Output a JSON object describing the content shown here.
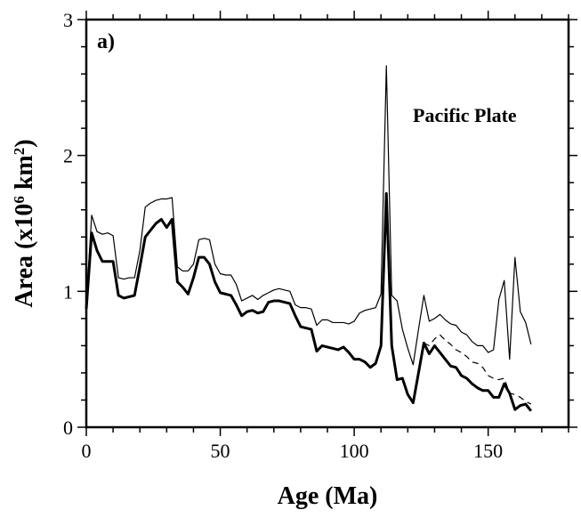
{
  "chart_data": {
    "type": "line",
    "panel_label": "a)",
    "annotation": "Pacific Plate",
    "xlabel": "Age (Ma)",
    "ylabel_main": "Area (x10",
    "ylabel_exp1": "6",
    "ylabel_mid": " km",
    "ylabel_exp2": "2",
    "ylabel_end": ")",
    "xlim": [
      0,
      180
    ],
    "ylim": [
      0,
      3
    ],
    "xticks": [
      0,
      50,
      100,
      150
    ],
    "yticks": [
      0,
      1,
      2,
      3
    ],
    "grid": false,
    "series": [
      {
        "style": "thin-solid",
        "x": [
          0,
          2,
          4,
          6,
          8,
          10,
          12,
          14,
          16,
          18,
          20,
          22,
          24,
          26,
          28,
          30,
          32,
          34,
          36,
          38,
          40,
          42,
          44,
          46,
          48,
          50,
          52,
          54,
          56,
          58,
          60,
          62,
          64,
          66,
          68,
          70,
          72,
          74,
          76,
          78,
          80,
          82,
          84,
          86,
          88,
          90,
          92,
          94,
          96,
          98,
          100,
          102,
          104,
          106,
          108,
          110,
          112,
          114,
          116,
          118,
          120,
          122,
          124,
          126,
          128,
          130,
          132,
          134,
          136,
          138,
          140,
          142,
          144,
          146,
          148,
          150,
          152,
          154,
          156,
          158,
          160,
          162,
          164,
          166
        ],
        "y": [
          0.9,
          1.56,
          1.44,
          1.42,
          1.43,
          1.41,
          1.1,
          1.09,
          1.1,
          1.1,
          1.3,
          1.62,
          1.65,
          1.67,
          1.68,
          1.68,
          1.69,
          1.18,
          1.15,
          1.15,
          1.2,
          1.38,
          1.39,
          1.38,
          1.2,
          1.13,
          1.12,
          1.12,
          1.05,
          0.93,
          0.95,
          0.97,
          0.94,
          0.97,
          0.99,
          1.01,
          1.02,
          1.01,
          1.0,
          0.9,
          0.88,
          0.88,
          0.87,
          0.75,
          0.79,
          0.79,
          0.77,
          0.77,
          0.77,
          0.76,
          0.78,
          0.84,
          0.86,
          0.87,
          0.88,
          0.98,
          2.66,
          0.97,
          0.93,
          0.72,
          0.58,
          0.46,
          0.72,
          0.97,
          0.78,
          0.8,
          0.83,
          0.79,
          0.76,
          0.75,
          0.7,
          0.68,
          0.63,
          0.6,
          0.6,
          0.55,
          0.57,
          0.94,
          1.08,
          0.5,
          1.25,
          0.85,
          0.77,
          0.61
        ]
      },
      {
        "style": "dashed",
        "x": [
          126,
          128,
          130,
          132,
          134,
          136,
          138,
          140,
          142,
          144,
          146,
          148,
          150,
          152,
          154,
          156,
          158,
          160,
          162,
          164,
          166
        ],
        "y": [
          0.62,
          0.6,
          0.65,
          0.68,
          0.64,
          0.61,
          0.57,
          0.55,
          0.52,
          0.48,
          0.47,
          0.44,
          0.38,
          0.36,
          0.35,
          0.36,
          0.25,
          0.24,
          0.22,
          0.19,
          0.17
        ]
      },
      {
        "style": "thick-solid",
        "x": [
          0,
          2,
          4,
          6,
          8,
          10,
          12,
          14,
          16,
          18,
          20,
          22,
          24,
          26,
          28,
          30,
          32,
          34,
          36,
          38,
          40,
          42,
          44,
          46,
          48,
          50,
          52,
          54,
          56,
          58,
          60,
          62,
          64,
          66,
          68,
          70,
          72,
          74,
          76,
          78,
          80,
          82,
          84,
          86,
          88,
          90,
          92,
          94,
          96,
          98,
          100,
          102,
          104,
          106,
          108,
          110,
          112,
          114,
          116,
          118,
          120,
          122,
          124,
          126,
          128,
          130,
          132,
          134,
          136,
          138,
          140,
          142,
          144,
          146,
          148,
          150,
          152,
          154,
          156,
          158,
          160,
          162,
          164,
          166
        ],
        "y": [
          0.87,
          1.43,
          1.3,
          1.22,
          1.22,
          1.22,
          0.97,
          0.95,
          0.96,
          0.97,
          1.18,
          1.4,
          1.45,
          1.5,
          1.53,
          1.47,
          1.53,
          1.07,
          1.03,
          0.98,
          1.1,
          1.25,
          1.25,
          1.2,
          1.07,
          0.99,
          0.98,
          0.97,
          0.9,
          0.82,
          0.85,
          0.86,
          0.84,
          0.85,
          0.92,
          0.93,
          0.93,
          0.92,
          0.91,
          0.82,
          0.74,
          0.73,
          0.72,
          0.56,
          0.6,
          0.59,
          0.58,
          0.57,
          0.59,
          0.55,
          0.5,
          0.5,
          0.48,
          0.44,
          0.47,
          0.6,
          1.72,
          0.6,
          0.35,
          0.36,
          0.24,
          0.18,
          0.4,
          0.62,
          0.54,
          0.6,
          0.55,
          0.5,
          0.45,
          0.44,
          0.38,
          0.36,
          0.32,
          0.29,
          0.27,
          0.27,
          0.22,
          0.22,
          0.32,
          0.25,
          0.13,
          0.16,
          0.17,
          0.12
        ]
      }
    ]
  }
}
